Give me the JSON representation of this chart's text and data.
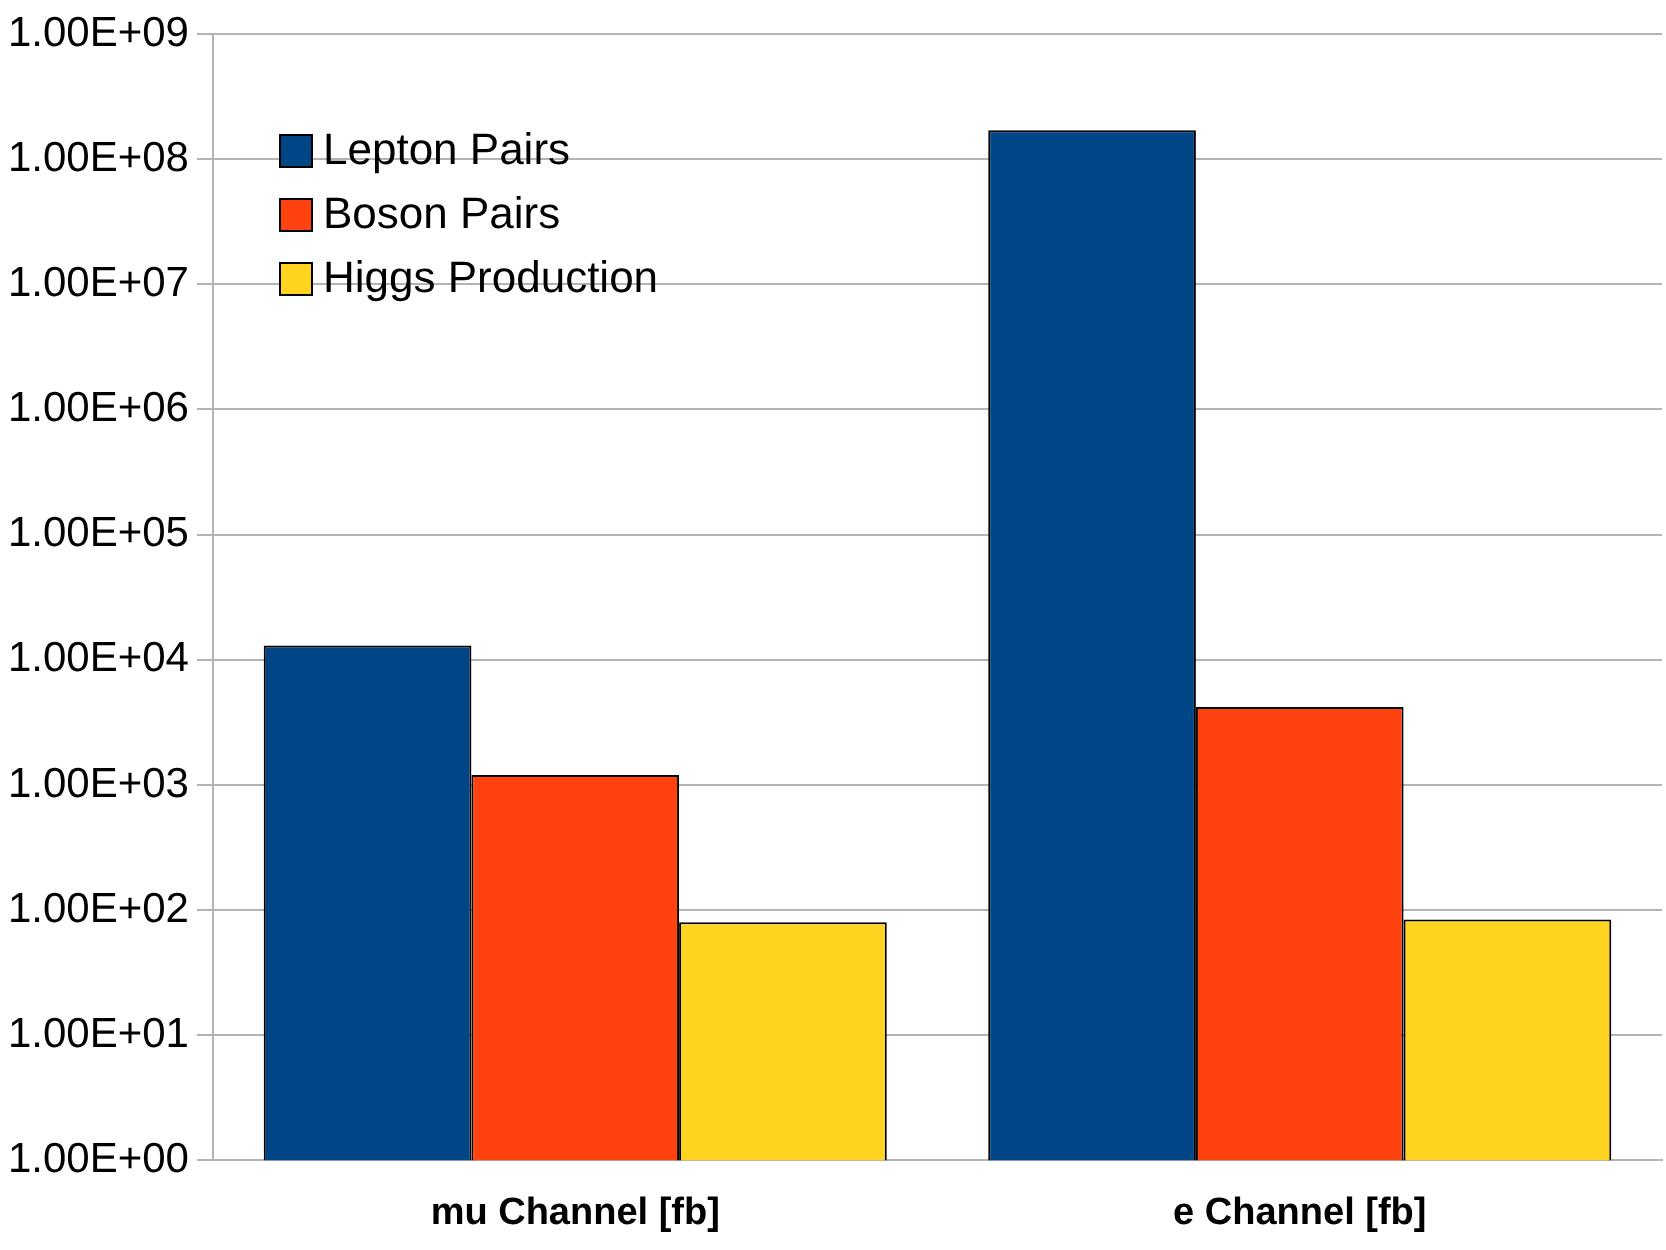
{
  "chart_data": {
    "type": "bar",
    "categories": [
      "mu Channel [fb]",
      "e Channel [fb]"
    ],
    "series": [
      {
        "name": "Lepton Pairs",
        "color": "#004586",
        "values": [
          13000,
          170000000
        ]
      },
      {
        "name": "Boson Pairs",
        "color": "#ff420e",
        "values": [
          1200,
          4200
        ]
      },
      {
        "name": "Higgs Production",
        "color": "#ffd320",
        "values": [
          80,
          84
        ]
      }
    ],
    "log": true,
    "ylim": [
      1,
      1000000000
    ],
    "yticks": [
      {
        "value": 1,
        "label": "1.00E+00"
      },
      {
        "value": 10,
        "label": "1.00E+01"
      },
      {
        "value": 100,
        "label": "1.00E+02"
      },
      {
        "value": 1000,
        "label": "1.00E+03"
      },
      {
        "value": 10000,
        "label": "1.00E+04"
      },
      {
        "value": 100000,
        "label": "1.00E+05"
      },
      {
        "value": 1000000,
        "label": "1.00E+06"
      },
      {
        "value": 10000000,
        "label": "1.00E+07"
      },
      {
        "value": 100000000,
        "label": "1.00E+08"
      },
      {
        "value": 1000000000,
        "label": "1.00E+09"
      }
    ],
    "grid": "y",
    "legend": "top left"
  }
}
